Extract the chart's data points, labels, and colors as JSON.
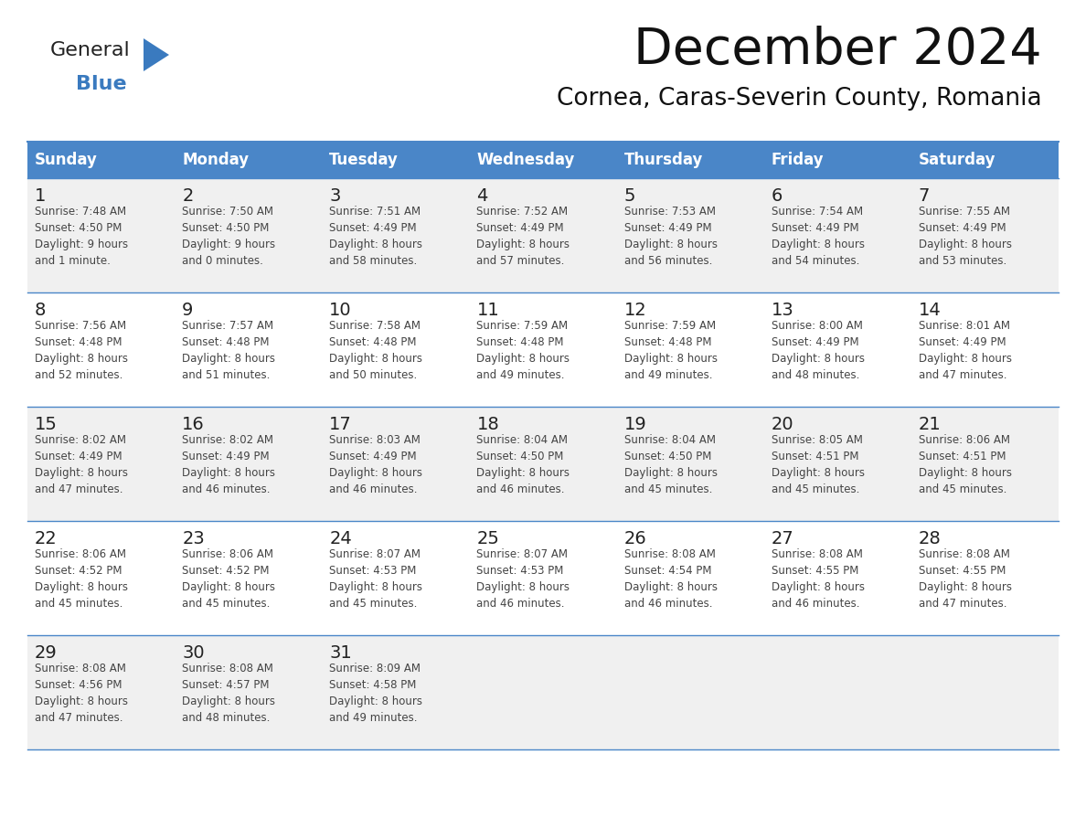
{
  "title": "December 2024",
  "subtitle": "Cornea, Caras-Severin County, Romania",
  "days_of_week": [
    "Sunday",
    "Monday",
    "Tuesday",
    "Wednesday",
    "Thursday",
    "Friday",
    "Saturday"
  ],
  "header_bg": "#4a86c8",
  "header_text": "#ffffff",
  "row_bg_odd": "#f0f0f0",
  "row_bg_even": "#ffffff",
  "border_color": "#4a86c8",
  "day_num_color": "#222222",
  "cell_text_color": "#444444",
  "logo_general_color": "#222222",
  "logo_blue_color": "#3a7abf",
  "logo_triangle_color": "#3a7abf",
  "title_color": "#111111",
  "subtitle_color": "#111111",
  "calendar_data": [
    [
      {
        "day": 1,
        "sunrise": "7:48 AM",
        "sunset": "4:50 PM",
        "daylight_h": "9 hours",
        "daylight_m": "and 1 minute."
      },
      {
        "day": 2,
        "sunrise": "7:50 AM",
        "sunset": "4:50 PM",
        "daylight_h": "9 hours",
        "daylight_m": "and 0 minutes."
      },
      {
        "day": 3,
        "sunrise": "7:51 AM",
        "sunset": "4:49 PM",
        "daylight_h": "8 hours",
        "daylight_m": "and 58 minutes."
      },
      {
        "day": 4,
        "sunrise": "7:52 AM",
        "sunset": "4:49 PM",
        "daylight_h": "8 hours",
        "daylight_m": "and 57 minutes."
      },
      {
        "day": 5,
        "sunrise": "7:53 AM",
        "sunset": "4:49 PM",
        "daylight_h": "8 hours",
        "daylight_m": "and 56 minutes."
      },
      {
        "day": 6,
        "sunrise": "7:54 AM",
        "sunset": "4:49 PM",
        "daylight_h": "8 hours",
        "daylight_m": "and 54 minutes."
      },
      {
        "day": 7,
        "sunrise": "7:55 AM",
        "sunset": "4:49 PM",
        "daylight_h": "8 hours",
        "daylight_m": "and 53 minutes."
      }
    ],
    [
      {
        "day": 8,
        "sunrise": "7:56 AM",
        "sunset": "4:48 PM",
        "daylight_h": "8 hours",
        "daylight_m": "and 52 minutes."
      },
      {
        "day": 9,
        "sunrise": "7:57 AM",
        "sunset": "4:48 PM",
        "daylight_h": "8 hours",
        "daylight_m": "and 51 minutes."
      },
      {
        "day": 10,
        "sunrise": "7:58 AM",
        "sunset": "4:48 PM",
        "daylight_h": "8 hours",
        "daylight_m": "and 50 minutes."
      },
      {
        "day": 11,
        "sunrise": "7:59 AM",
        "sunset": "4:48 PM",
        "daylight_h": "8 hours",
        "daylight_m": "and 49 minutes."
      },
      {
        "day": 12,
        "sunrise": "7:59 AM",
        "sunset": "4:48 PM",
        "daylight_h": "8 hours",
        "daylight_m": "and 49 minutes."
      },
      {
        "day": 13,
        "sunrise": "8:00 AM",
        "sunset": "4:49 PM",
        "daylight_h": "8 hours",
        "daylight_m": "and 48 minutes."
      },
      {
        "day": 14,
        "sunrise": "8:01 AM",
        "sunset": "4:49 PM",
        "daylight_h": "8 hours",
        "daylight_m": "and 47 minutes."
      }
    ],
    [
      {
        "day": 15,
        "sunrise": "8:02 AM",
        "sunset": "4:49 PM",
        "daylight_h": "8 hours",
        "daylight_m": "and 47 minutes."
      },
      {
        "day": 16,
        "sunrise": "8:02 AM",
        "sunset": "4:49 PM",
        "daylight_h": "8 hours",
        "daylight_m": "and 46 minutes."
      },
      {
        "day": 17,
        "sunrise": "8:03 AM",
        "sunset": "4:49 PM",
        "daylight_h": "8 hours",
        "daylight_m": "and 46 minutes."
      },
      {
        "day": 18,
        "sunrise": "8:04 AM",
        "sunset": "4:50 PM",
        "daylight_h": "8 hours",
        "daylight_m": "and 46 minutes."
      },
      {
        "day": 19,
        "sunrise": "8:04 AM",
        "sunset": "4:50 PM",
        "daylight_h": "8 hours",
        "daylight_m": "and 45 minutes."
      },
      {
        "day": 20,
        "sunrise": "8:05 AM",
        "sunset": "4:51 PM",
        "daylight_h": "8 hours",
        "daylight_m": "and 45 minutes."
      },
      {
        "day": 21,
        "sunrise": "8:06 AM",
        "sunset": "4:51 PM",
        "daylight_h": "8 hours",
        "daylight_m": "and 45 minutes."
      }
    ],
    [
      {
        "day": 22,
        "sunrise": "8:06 AM",
        "sunset": "4:52 PM",
        "daylight_h": "8 hours",
        "daylight_m": "and 45 minutes."
      },
      {
        "day": 23,
        "sunrise": "8:06 AM",
        "sunset": "4:52 PM",
        "daylight_h": "8 hours",
        "daylight_m": "and 45 minutes."
      },
      {
        "day": 24,
        "sunrise": "8:07 AM",
        "sunset": "4:53 PM",
        "daylight_h": "8 hours",
        "daylight_m": "and 45 minutes."
      },
      {
        "day": 25,
        "sunrise": "8:07 AM",
        "sunset": "4:53 PM",
        "daylight_h": "8 hours",
        "daylight_m": "and 46 minutes."
      },
      {
        "day": 26,
        "sunrise": "8:08 AM",
        "sunset": "4:54 PM",
        "daylight_h": "8 hours",
        "daylight_m": "and 46 minutes."
      },
      {
        "day": 27,
        "sunrise": "8:08 AM",
        "sunset": "4:55 PM",
        "daylight_h": "8 hours",
        "daylight_m": "and 46 minutes."
      },
      {
        "day": 28,
        "sunrise": "8:08 AM",
        "sunset": "4:55 PM",
        "daylight_h": "8 hours",
        "daylight_m": "and 47 minutes."
      }
    ],
    [
      {
        "day": 29,
        "sunrise": "8:08 AM",
        "sunset": "4:56 PM",
        "daylight_h": "8 hours",
        "daylight_m": "and 47 minutes."
      },
      {
        "day": 30,
        "sunrise": "8:08 AM",
        "sunset": "4:57 PM",
        "daylight_h": "8 hours",
        "daylight_m": "and 48 minutes."
      },
      {
        "day": 31,
        "sunrise": "8:09 AM",
        "sunset": "4:58 PM",
        "daylight_h": "8 hours",
        "daylight_m": "and 49 minutes."
      },
      null,
      null,
      null,
      null
    ]
  ]
}
